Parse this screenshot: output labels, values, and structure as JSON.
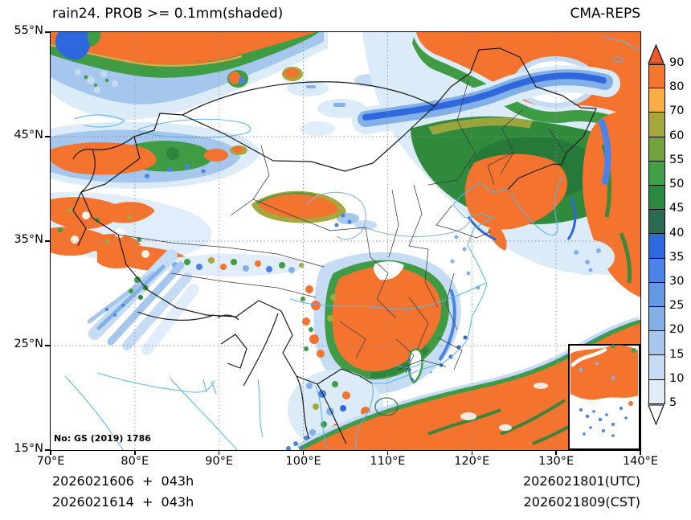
{
  "header": {
    "title": "rain24. PROB >= 0.1mm(shaded)",
    "source": "CMA-REPS"
  },
  "axes": {
    "x_ticks": [
      "70°E",
      "80°E",
      "90°E",
      "100°E",
      "110°E",
      "120°E",
      "130°E",
      "140°E"
    ],
    "y_ticks": [
      "55°N",
      "45°N",
      "35°N",
      "25°N",
      "15°N"
    ]
  },
  "colorbar": {
    "tick_labels": [
      "90",
      "80",
      "70",
      "60",
      "55",
      "50",
      "45",
      "40",
      "35",
      "30",
      "25",
      "20",
      "15",
      "10",
      "5"
    ],
    "cell_colors_top_to_bottom": [
      "#f5762f",
      "#fbae45",
      "#a6a73e",
      "#74a23d",
      "#42a047",
      "#2c8a3e",
      "#2a6b52",
      "#2f68df",
      "#4b83e6",
      "#639ae4",
      "#83b1e6",
      "#a6c8ed",
      "#c6dcf3",
      "#e0edf9"
    ],
    "over_arrow_color": "#ee5a2b",
    "under_arrow_color": "#ffffff"
  },
  "footer": {
    "init_line_utc": "2026021606  +  043h",
    "init_line_cst": "2026021614  +  043h",
    "valid_line_utc": "2026021801(UTC)",
    "valid_line_cst": "2026021809(CST)"
  },
  "watermark": "No: GS (2019) 1786",
  "palette": {
    "shade_orange": "#f4742f",
    "shade_light_orange": "#f9a847",
    "shade_olive": "#a6a73e",
    "shade_green": "#3f9c45",
    "shade_dark_green": "#2c853c",
    "shade_strong_blue": "#2f68de",
    "shade_mid_blue": "#4b82e5",
    "shade_pale_blue": "#c6dcf4",
    "coastline_blue": "#5ab4e8",
    "border_black": "#1a1a1a"
  },
  "chart_data": {
    "type": "heatmap",
    "title": "rain24. PROB >= 0.1mm(shaded)",
    "model": "CMA-REPS",
    "variable": "24h rain probability >= 0.1mm, shaded (%)",
    "x_range_deg_east": [
      70,
      140
    ],
    "y_range_deg_north": [
      15,
      55
    ],
    "grid_interval_deg": 10,
    "colorbar_levels": [
      5,
      10,
      15,
      20,
      25,
      30,
      35,
      40,
      45,
      50,
      55,
      60,
      70,
      80,
      90
    ],
    "colorbar_colors_bottom_to_top": [
      "#e0edf9",
      "#c6dcf3",
      "#a6c8ed",
      "#83b1e6",
      "#639ae4",
      "#4b83e6",
      "#2f68df",
      "#2a6b52",
      "#2c8a3e",
      "#42a047",
      "#74a23d",
      "#a6a73e",
      "#fbae45",
      "#f5762f"
    ],
    "init_times": [
      "2026021606  +  043h",
      "2026021614  +  043h"
    ],
    "valid_times": [
      "2026021801(UTC)",
      "2026021809(CST)"
    ]
  }
}
